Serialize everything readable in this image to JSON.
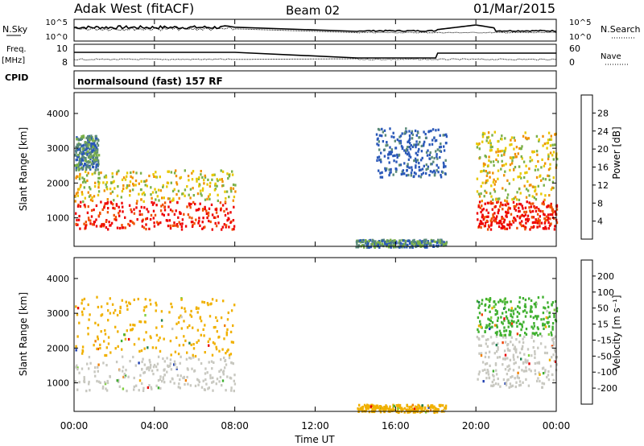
{
  "header": {
    "station": "Adak West (fitACF)",
    "beam": "Beam 02",
    "date": "01/Mar/2015"
  },
  "params": {
    "nsky_label": "N.Sky",
    "nsearch_label": "N.Search",
    "freq_label_1": "Freq.",
    "freq_label_2": "[MHz]",
    "nave_label": "Nave",
    "cpid_label": "CPID",
    "cpid_text": "normalsound (fast) 157 RF",
    "noise_ticks": [
      "10^5",
      "10^0"
    ],
    "freq_ticks": [
      "10",
      "8"
    ],
    "nave_ticks": [
      "60",
      "0"
    ]
  },
  "chart_data": [
    {
      "type": "heatmap",
      "name": "power",
      "ylabel": "Slant Range [km]",
      "yticks": [
        "1000",
        "2000",
        "3000",
        "4000"
      ],
      "ylim": [
        180,
        4600
      ],
      "xlim": [
        0,
        24
      ],
      "colorbar_label": "Power [dB]",
      "colorbar_ticks": [
        "4",
        "8",
        "12",
        "16",
        "20",
        "24",
        "28"
      ],
      "colorbar_colors": [
        "#0000ee",
        "#2a58b8",
        "#5a8a78",
        "#7ab048",
        "#e8c800",
        "#f09000",
        "#f05000",
        "#ee0000"
      ],
      "regions": [
        {
          "t": [
            0,
            8
          ],
          "r": [
            700,
            1500
          ],
          "level": 28
        },
        {
          "t": [
            0,
            8
          ],
          "r": [
            1500,
            2400
          ],
          "level": 16
        },
        {
          "t": [
            0,
            1.2
          ],
          "r": [
            2400,
            3400
          ],
          "level": 8
        },
        {
          "t": [
            14,
            18.5
          ],
          "r": [
            180,
            400
          ],
          "level": 8
        },
        {
          "t": [
            15,
            18.5
          ],
          "r": [
            2200,
            3600
          ],
          "level": 4
        },
        {
          "t": [
            20,
            24
          ],
          "r": [
            700,
            1500
          ],
          "level": 28
        },
        {
          "t": [
            20,
            24
          ],
          "r": [
            1500,
            3500
          ],
          "level": 16
        }
      ]
    },
    {
      "type": "heatmap",
      "name": "velocity",
      "ylabel": "Slant Range [km]",
      "yticks": [
        "1000",
        "2000",
        "3000",
        "4000"
      ],
      "ylim": [
        180,
        4600
      ],
      "xlim": [
        0,
        24
      ],
      "colorbar_label": "Velocity [m s⁻¹]",
      "colorbar_ticks": [
        "200",
        "100",
        "50",
        "15",
        "-15",
        "-50",
        "-100",
        "-200"
      ],
      "colorbar_colors": [
        "#2040b0",
        "#208050",
        "#40b030",
        "#80d040",
        "#c8c8c0",
        "#f0b000",
        "#f08000",
        "#f04000",
        "#e80000"
      ],
      "xlabel": "Time UT",
      "xticks": [
        "00:00",
        "04:00",
        "08:00",
        "12:00",
        "16:00",
        "20:00",
        "00:00"
      ],
      "regions": [
        {
          "t": [
            0,
            8
          ],
          "r": [
            800,
            1800
          ],
          "level": "-15..15"
        },
        {
          "t": [
            0,
            8
          ],
          "r": [
            1800,
            3500
          ],
          "level": "-50"
        },
        {
          "t": [
            14,
            18.5
          ],
          "r": [
            180,
            400
          ],
          "level": "-50"
        },
        {
          "t": [
            20,
            24
          ],
          "r": [
            900,
            2400
          ],
          "level": "-15..15"
        },
        {
          "t": [
            20,
            24
          ],
          "r": [
            2400,
            3500
          ],
          "level": "50"
        }
      ]
    }
  ]
}
